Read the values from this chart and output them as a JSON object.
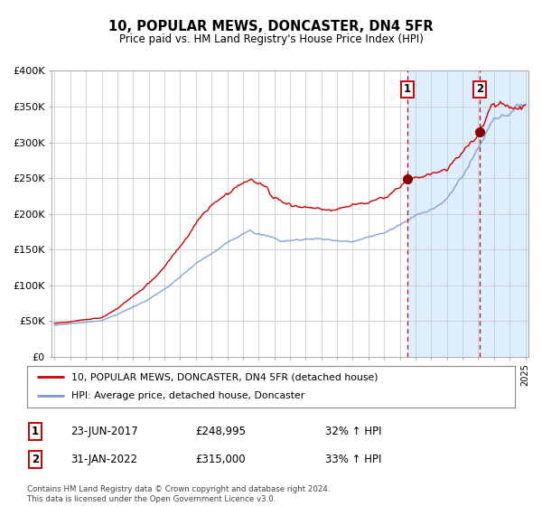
{
  "title": "10, POPULAR MEWS, DONCASTER, DN4 5FR",
  "subtitle": "Price paid vs. HM Land Registry's House Price Index (HPI)",
  "ylim": [
    0,
    400000
  ],
  "yticks": [
    0,
    50000,
    100000,
    150000,
    200000,
    250000,
    300000,
    350000,
    400000
  ],
  "ytick_labels": [
    "£0",
    "£50K",
    "£100K",
    "£150K",
    "£200K",
    "£250K",
    "£300K",
    "£350K",
    "£400K"
  ],
  "x_start_year": 1995,
  "x_end_year": 2025,
  "line1_color": "#cc0000",
  "line2_color": "#7799cc",
  "marker_color": "#880000",
  "point1_date": 2017.47,
  "point1_value": 248995,
  "point1_label": "1",
  "point1_date_str": "23-JUN-2017",
  "point1_price": "£248,995",
  "point1_hpi": "32% ↑ HPI",
  "point2_date": 2022.08,
  "point2_value": 315000,
  "point2_label": "2",
  "point2_date_str": "31-JAN-2022",
  "point2_price": "£315,000",
  "point2_hpi": "33% ↑ HPI",
  "legend1_label": "10, POPULAR MEWS, DONCASTER, DN4 5FR (detached house)",
  "legend2_label": "HPI: Average price, detached house, Doncaster",
  "footnote": "Contains HM Land Registry data © Crown copyright and database right 2024.\nThis data is licensed under the Open Government Licence v3.0.",
  "grid_color": "#cccccc",
  "shade_color": "#ddeeff",
  "vline_color": "#cc0000"
}
